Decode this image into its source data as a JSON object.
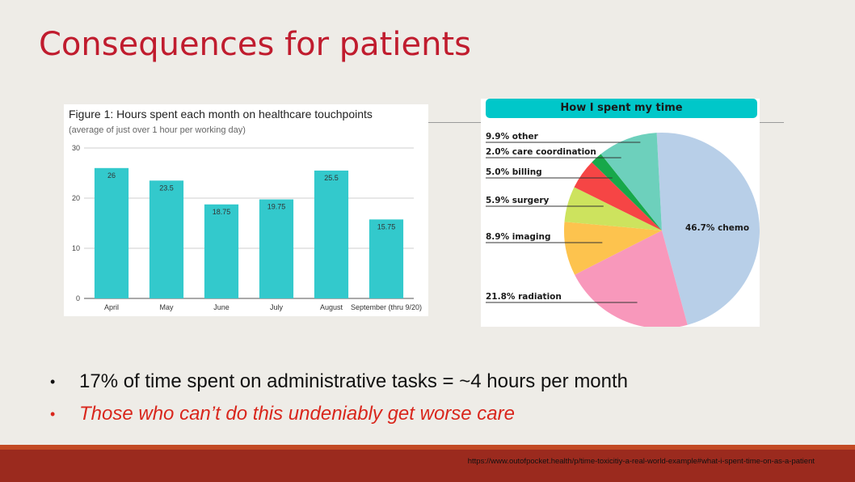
{
  "slide": {
    "title": "Consequences for patients",
    "bullets": [
      "17% of time spent on administrative tasks = ~4 hours per month",
      "Those who can’t do this undeniably get worse care"
    ],
    "bullet_glyph": "•",
    "source_url": "https://www.outofpocket.health/p/time-toxicitiy-a-real-world-example#what-i-spent-time-on-as-a-patient",
    "colors": {
      "title": "#c01c2e",
      "accent_bullet": "#d9261c",
      "footer": "#9b2a1e"
    }
  },
  "chart_data": [
    {
      "type": "bar",
      "title": "Figure 1: Hours spent each month on healthcare touchpoints",
      "subtitle": "(average of just over 1 hour per working day)",
      "categories": [
        "April",
        "May",
        "June",
        "July",
        "August",
        "September (thru 9/20)"
      ],
      "values": [
        26,
        23.5,
        18.75,
        19.75,
        25.5,
        15.75
      ],
      "value_labels": [
        "26",
        "23.5",
        "18.75",
        "19.75",
        "25.5",
        "15.75"
      ],
      "yticks": [
        "0",
        "10",
        "20",
        "30"
      ],
      "ylim": [
        0,
        30
      ],
      "grid": true,
      "color": "#33c9cc"
    },
    {
      "type": "pie",
      "title": "How I spent my time",
      "slices": [
        {
          "label": "46.7% chemo",
          "value": 46.7,
          "color": "#b8cfe8"
        },
        {
          "label": "21.8% radiation",
          "value": 21.8,
          "color": "#f898bb"
        },
        {
          "label": "8.9% imaging",
          "value": 8.9,
          "color": "#fdc34e"
        },
        {
          "label": "5.9% surgery",
          "value": 5.9,
          "color": "#cde35e"
        },
        {
          "label": "5.0% billing",
          "value": 5.0,
          "color": "#f64545"
        },
        {
          "label": "2.0% care coordination",
          "value": 2.0,
          "color": "#17a84a"
        },
        {
          "label": "9.9% other",
          "value": 9.9,
          "color": "#6dd0bc"
        }
      ]
    }
  ]
}
